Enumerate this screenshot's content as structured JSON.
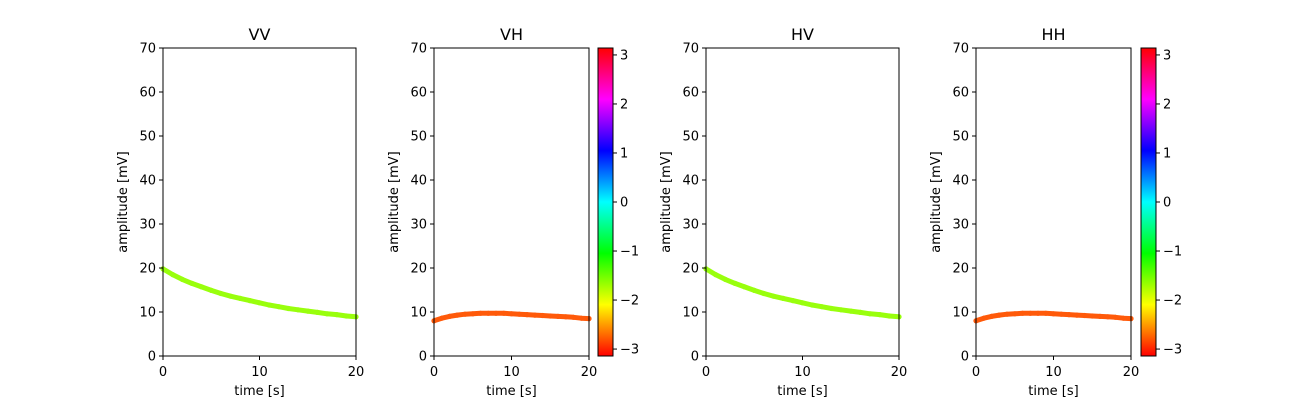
{
  "chart_data": [
    {
      "type": "scatter",
      "title": "VV",
      "xlabel": "time [s]",
      "ylabel": "amplitude [mV]",
      "xlim": [
        0,
        20
      ],
      "ylim": [
        0,
        70
      ],
      "xticks": [
        0,
        10,
        20
      ],
      "yticks": [
        0,
        10,
        20,
        30,
        40,
        50,
        60,
        70
      ],
      "series": [
        {
          "x": [
            0,
            1,
            2,
            3,
            4,
            5,
            6,
            7,
            8,
            9,
            10,
            11,
            12,
            13,
            14,
            15,
            16,
            17,
            18,
            19,
            20
          ],
          "y": [
            19.8,
            18.5,
            17.4,
            16.5,
            15.7,
            14.9,
            14.2,
            13.6,
            13.1,
            12.6,
            12.1,
            11.6,
            11.2,
            10.8,
            10.5,
            10.2,
            9.9,
            9.6,
            9.4,
            9.1,
            8.9
          ],
          "color": "#99ff0d",
          "phase": -1.8
        }
      ],
      "grid": false,
      "colorbar": false
    },
    {
      "type": "scatter",
      "title": "VH",
      "xlabel": "time [s]",
      "ylabel": "amplitude [mV]",
      "xlim": [
        0,
        20
      ],
      "ylim": [
        0,
        70
      ],
      "xticks": [
        0,
        10,
        20
      ],
      "yticks": [
        0,
        10,
        20,
        30,
        40,
        50,
        60,
        70
      ],
      "series": [
        {
          "x": [
            0,
            1,
            2,
            3,
            4,
            5,
            6,
            7,
            8,
            9,
            10,
            11,
            12,
            13,
            14,
            15,
            16,
            17,
            18,
            19,
            20
          ],
          "y": [
            8.0,
            8.6,
            9.0,
            9.3,
            9.5,
            9.6,
            9.7,
            9.7,
            9.7,
            9.7,
            9.6,
            9.5,
            9.4,
            9.3,
            9.2,
            9.1,
            9.0,
            8.9,
            8.8,
            8.6,
            8.5
          ],
          "color": "#ff5a0a",
          "phase": -2.8
        }
      ],
      "grid": false,
      "colorbar": true
    },
    {
      "type": "scatter",
      "title": "HV",
      "xlabel": "time [s]",
      "ylabel": "amplitude [mV]",
      "xlim": [
        0,
        20
      ],
      "ylim": [
        0,
        70
      ],
      "xticks": [
        0,
        10,
        20
      ],
      "yticks": [
        0,
        10,
        20,
        30,
        40,
        50,
        60,
        70
      ],
      "series": [
        {
          "x": [
            0,
            1,
            2,
            3,
            4,
            5,
            6,
            7,
            8,
            9,
            10,
            11,
            12,
            13,
            14,
            15,
            16,
            17,
            18,
            19,
            20
          ],
          "y": [
            19.8,
            18.5,
            17.4,
            16.5,
            15.7,
            14.9,
            14.2,
            13.6,
            13.1,
            12.6,
            12.1,
            11.6,
            11.2,
            10.8,
            10.5,
            10.2,
            9.9,
            9.6,
            9.4,
            9.1,
            8.9
          ],
          "color": "#99ff0d",
          "phase": -1.8
        }
      ],
      "grid": false,
      "colorbar": false
    },
    {
      "type": "scatter",
      "title": "HH",
      "xlabel": "time [s]",
      "ylabel": "amplitude [mV]",
      "xlim": [
        0,
        20
      ],
      "ylim": [
        0,
        70
      ],
      "xticks": [
        0,
        10,
        20
      ],
      "yticks": [
        0,
        10,
        20,
        30,
        40,
        50,
        60,
        70
      ],
      "series": [
        {
          "x": [
            0,
            1,
            2,
            3,
            4,
            5,
            6,
            7,
            8,
            9,
            10,
            11,
            12,
            13,
            14,
            15,
            16,
            17,
            18,
            19,
            20
          ],
          "y": [
            8.0,
            8.6,
            9.0,
            9.3,
            9.5,
            9.6,
            9.7,
            9.7,
            9.7,
            9.7,
            9.6,
            9.5,
            9.4,
            9.3,
            9.2,
            9.1,
            9.0,
            8.9,
            8.8,
            8.6,
            8.5
          ],
          "color": "#ff5a0a",
          "phase": -2.8
        }
      ],
      "grid": false,
      "colorbar": true
    }
  ],
  "colorbar": {
    "colormap": "hsv",
    "range": [
      -3.14159,
      3.14159
    ],
    "ticks": [
      -3,
      -2,
      -1,
      0,
      1,
      2,
      3
    ],
    "tick_labels": [
      "−3",
      "−2",
      "−1",
      "0",
      "1",
      "2",
      "3"
    ]
  }
}
